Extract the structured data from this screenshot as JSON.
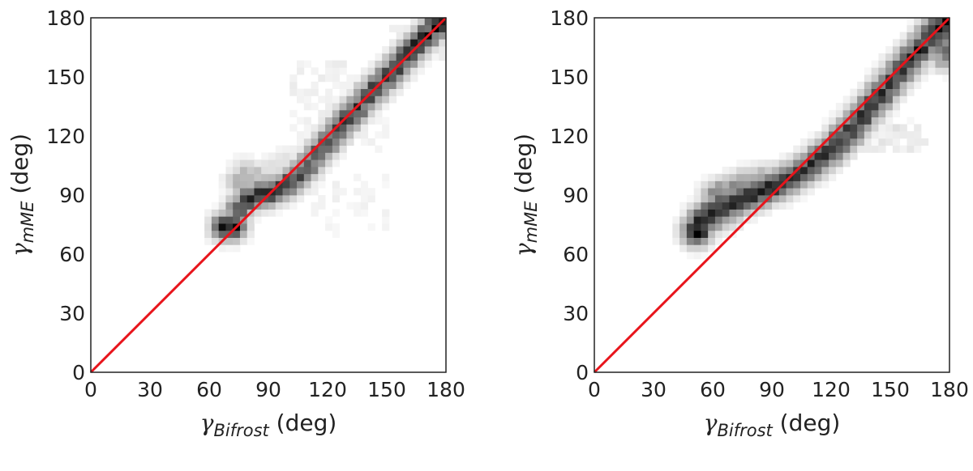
{
  "colors": {
    "identity_line": "#e8141b",
    "frame": "#222222",
    "density_low": "#ffffff",
    "density_high": "#000000"
  },
  "chart_data": [
    {
      "type": "heatmap",
      "title": "",
      "xlabel": {
        "symbol": "γ",
        "subscript": "Bifrost",
        "unit": " (deg)"
      },
      "ylabel": {
        "symbol": "γ",
        "subscript": "mME",
        "unit": " (deg)"
      },
      "xlim": [
        0,
        180
      ],
      "ylim": [
        0,
        180
      ],
      "xticks": [
        0,
        30,
        60,
        90,
        120,
        150,
        180
      ],
      "yticks": [
        0,
        30,
        60,
        90,
        120,
        150,
        180
      ],
      "xtick_labels": [
        "0",
        "30",
        "60",
        "90",
        "120",
        "150",
        "180"
      ],
      "ytick_labels": [
        "0",
        "30",
        "60",
        "90",
        "120",
        "150",
        "180"
      ],
      "grid": false,
      "colormap": "Greys",
      "bin_size_deg": 3.6,
      "reference_line": {
        "x": [
          0,
          180
        ],
        "y": [
          0,
          180
        ]
      },
      "ridge": [
        [
          68,
          74,
          1.0
        ],
        [
          72,
          74,
          0.95
        ],
        [
          75,
          83,
          0.7
        ],
        [
          80,
          88,
          0.8
        ],
        [
          85,
          90,
          0.85
        ],
        [
          90,
          91,
          0.85
        ],
        [
          95,
          93,
          0.85
        ],
        [
          100,
          96,
          0.8
        ],
        [
          105,
          100,
          0.75
        ],
        [
          110,
          105,
          0.7
        ],
        [
          115,
          111,
          0.75
        ],
        [
          120,
          117,
          0.8
        ],
        [
          125,
          123,
          0.8
        ],
        [
          130,
          129,
          0.85
        ],
        [
          135,
          134,
          0.8
        ],
        [
          140,
          140,
          0.8
        ],
        [
          145,
          145,
          0.85
        ],
        [
          150,
          150,
          0.85
        ],
        [
          155,
          155,
          0.85
        ],
        [
          160,
          161,
          0.85
        ],
        [
          165,
          166,
          0.85
        ],
        [
          170,
          171,
          0.9
        ],
        [
          175,
          176,
          1.0
        ],
        [
          178,
          179,
          1.0
        ]
      ],
      "ridge_width_deg": 4.5,
      "offset_cloud": [
        [
          75,
          97,
          0.35
        ],
        [
          78,
          102,
          0.25
        ],
        [
          82,
          100,
          0.3
        ],
        [
          87,
          98,
          0.25
        ],
        [
          92,
          104,
          0.15
        ],
        [
          98,
          108,
          0.12
        ],
        [
          106,
          110,
          0.12
        ]
      ],
      "scatter_regions": [
        [
          100,
          110,
          150,
          160,
          0.05
        ],
        [
          110,
          80,
          150,
          100,
          0.04
        ],
        [
          120,
          70,
          150,
          85,
          0.03
        ],
        [
          150,
          160,
          180,
          180,
          0.05
        ]
      ]
    },
    {
      "type": "heatmap",
      "title": "",
      "xlabel": {
        "symbol": "γ",
        "subscript": "Bifrost",
        "unit": " (deg)"
      },
      "ylabel": {
        "symbol": "γ",
        "subscript": "mME",
        "unit": " (deg)"
      },
      "xlim": [
        0,
        180
      ],
      "ylim": [
        0,
        180
      ],
      "xticks": [
        0,
        30,
        60,
        90,
        120,
        150,
        180
      ],
      "yticks": [
        0,
        30,
        60,
        90,
        120,
        150,
        180
      ],
      "xtick_labels": [
        "0",
        "30",
        "60",
        "90",
        "120",
        "150",
        "180"
      ],
      "ytick_labels": [
        "0",
        "30",
        "60",
        "90",
        "120",
        "150",
        "180"
      ],
      "grid": false,
      "colormap": "Greys",
      "bin_size_deg": 3.6,
      "reference_line": {
        "x": [
          0,
          180
        ],
        "y": [
          0,
          180
        ]
      },
      "ridge": [
        [
          52,
          72,
          1.0
        ],
        [
          55,
          77,
          0.95
        ],
        [
          60,
          81,
          0.9
        ],
        [
          65,
          84,
          0.85
        ],
        [
          70,
          86,
          0.85
        ],
        [
          75,
          88,
          0.85
        ],
        [
          80,
          90,
          0.85
        ],
        [
          85,
          92,
          0.85
        ],
        [
          90,
          94,
          0.85
        ],
        [
          95,
          96,
          0.8
        ],
        [
          100,
          99,
          0.8
        ],
        [
          105,
          102,
          0.8
        ],
        [
          110,
          105,
          0.8
        ],
        [
          115,
          109,
          0.85
        ],
        [
          120,
          113,
          0.85
        ],
        [
          125,
          118,
          0.85
        ],
        [
          130,
          123,
          0.85
        ],
        [
          135,
          129,
          0.85
        ],
        [
          140,
          135,
          0.85
        ],
        [
          145,
          141,
          0.85
        ],
        [
          150,
          147,
          0.85
        ],
        [
          155,
          153,
          0.85
        ],
        [
          160,
          159,
          0.9
        ],
        [
          165,
          164,
          0.9
        ],
        [
          170,
          170,
          0.9
        ],
        [
          175,
          175,
          0.95
        ],
        [
          178,
          178,
          1.0
        ]
      ],
      "ridge_width_deg": 5,
      "offset_cloud": [
        [
          60,
          90,
          0.45
        ],
        [
          65,
          92,
          0.5
        ],
        [
          70,
          94,
          0.5
        ],
        [
          75,
          96,
          0.45
        ],
        [
          80,
          97,
          0.4
        ],
        [
          85,
          99,
          0.35
        ],
        [
          90,
          100,
          0.3
        ],
        [
          62,
          78,
          0.5
        ],
        [
          68,
          80,
          0.45
        ],
        [
          176,
          165,
          0.6
        ],
        [
          178,
          160,
          0.5
        ]
      ],
      "scatter_regions": [
        [
          130,
          110,
          170,
          125,
          0.08
        ],
        [
          140,
          115,
          165,
          130,
          0.06
        ],
        [
          160,
          150,
          180,
          170,
          0.05
        ]
      ]
    }
  ]
}
